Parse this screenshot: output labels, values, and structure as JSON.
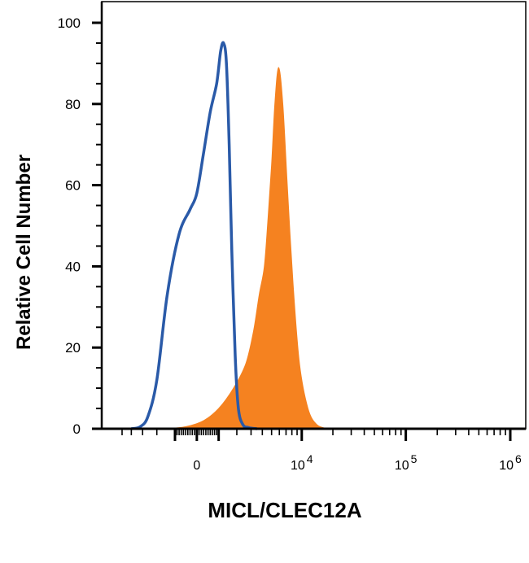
{
  "chart_data": {
    "type": "area",
    "xlabel": "MICL/CLEC12A",
    "ylabel": "Relative Cell Number",
    "x_scale": "biexponential",
    "ylim": [
      0,
      100
    ],
    "y_ticks": [
      "0",
      "20",
      "40",
      "60",
      "80",
      "100"
    ],
    "x_ticks": [
      {
        "base": "0",
        "exp": ""
      },
      {
        "base": "10",
        "exp": "4"
      },
      {
        "base": "10",
        "exp": "5"
      },
      {
        "base": "10",
        "exp": "6"
      }
    ],
    "series": [
      {
        "style": "outline",
        "color": "#2a5aa8",
        "x": [
          -4000,
          -3200,
          -2600,
          -2000,
          -1400,
          -800,
          -300,
          0,
          300,
          600,
          900,
          1100,
          1250,
          1400,
          1550,
          1700,
          1900,
          2100,
          2400,
          2800,
          3500
        ],
        "y": [
          0,
          0.5,
          3,
          12,
          33,
          48,
          54,
          58,
          68,
          78,
          85,
          93,
          95,
          90,
          70,
          44,
          18,
          5,
          1,
          0.3,
          0
        ]
      },
      {
        "style": "filled",
        "color": "#f58220",
        "x": [
          -1500,
          -500,
          300,
          1000,
          1800,
          2600,
          3200,
          3700,
          4200,
          4600,
          5000,
          5400,
          5900,
          6500,
          7200,
          8200,
          9500,
          11500,
          14000,
          18000
        ],
        "y": [
          0,
          0.5,
          2,
          5,
          10,
          16,
          24,
          33,
          40,
          52,
          65,
          80,
          89,
          80,
          60,
          36,
          16,
          5,
          1,
          0
        ]
      }
    ]
  }
}
